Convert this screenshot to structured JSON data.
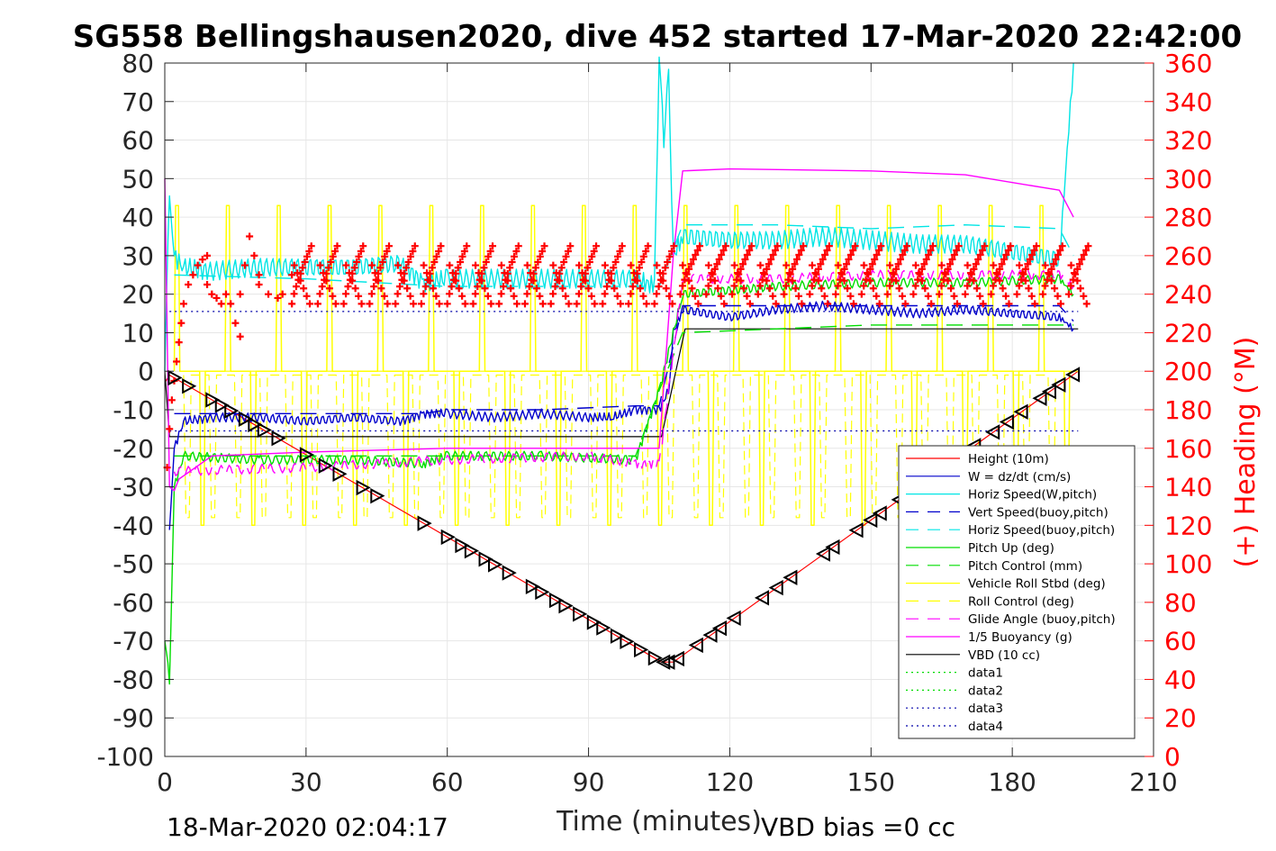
{
  "title": "SG558 Bellingshausen2020, dive 452 started 17-Mar-2020 22:42:00",
  "footer": {
    "end_time": "18-Mar-2020 02:04:17",
    "vbd_bias": "VBD bias =0 cc"
  },
  "chart_data": {
    "type": "line",
    "xlabel": "Time (minutes)",
    "ylabel": "",
    "y2label": "(+) Heading (°M)",
    "xlim": [
      0,
      210
    ],
    "ylim": [
      -100,
      80
    ],
    "y2lim": [
      0,
      360
    ],
    "xticks": [
      "0",
      "30",
      "60",
      "90",
      "120",
      "150",
      "180",
      "210"
    ],
    "yticks": [
      "80",
      "70",
      "60",
      "50",
      "40",
      "30",
      "20",
      "10",
      "0",
      "-10",
      "-20",
      "-30",
      "-40",
      "-50",
      "-60",
      "-70",
      "-80",
      "-90",
      "-100"
    ],
    "y2ticks": [
      "360",
      "340",
      "320",
      "300",
      "280",
      "260",
      "240",
      "220",
      "200",
      "180",
      "160",
      "140",
      "120",
      "100",
      "80",
      "60",
      "40",
      "20",
      "0"
    ],
    "grid": true,
    "legend_position": "bottom-right",
    "colors": {
      "height": "#ff0000",
      "w": "#0000cc",
      "horiz_w": "#00e5e5",
      "vert_buoy": "#0000cc",
      "horiz_buoy": "#00e5e5",
      "pitch": "#00dd00",
      "pitch_control": "#00dd00",
      "roll": "#ffff00",
      "roll_control": "#ffff00",
      "glide": "#ff00ff",
      "buoyancy": "#ff00ff",
      "vbd": "#000000",
      "heading": "#ff0000",
      "data": "#0000aa"
    },
    "legend": [
      {
        "key": "height",
        "label": "Height (10m)",
        "style": "solid"
      },
      {
        "key": "w",
        "label": "W = dz/dt (cm/s)",
        "style": "solid"
      },
      {
        "key": "horiz_w",
        "label": "Horiz Speed(W,pitch)",
        "style": "solid"
      },
      {
        "key": "vert_buoy",
        "label": "Vert Speed(buoy,pitch)",
        "style": "dashed"
      },
      {
        "key": "horiz_buoy",
        "label": "Horiz Speed(buoy,pitch)",
        "style": "dashed"
      },
      {
        "key": "pitch",
        "label": "Pitch Up (deg)",
        "style": "solid"
      },
      {
        "key": "pitch_control",
        "label": "Pitch Control (mm)",
        "style": "dashed"
      },
      {
        "key": "roll",
        "label": "Vehicle Roll Stbd (deg)",
        "style": "solid"
      },
      {
        "key": "roll_control",
        "label": "Roll Control (deg)",
        "style": "dashed"
      },
      {
        "key": "glide",
        "label": "Glide Angle (buoy,pitch)",
        "style": "dashed"
      },
      {
        "key": "buoyancy",
        "label": "1/5 Buoyancy (g)",
        "style": "solid"
      },
      {
        "key": "vbd",
        "label": "VBD (10 cc)",
        "style": "solid"
      },
      {
        "key": "data1",
        "label": "data1",
        "style": "dotted",
        "color": "#00dd00"
      },
      {
        "key": "data2",
        "label": "data2",
        "style": "dotted",
        "color": "#00dd00"
      },
      {
        "key": "data3",
        "label": "data3",
        "style": "dotted",
        "color": "#0000aa"
      },
      {
        "key": "data4",
        "label": "data4",
        "style": "dotted",
        "color": "#0000aa"
      }
    ],
    "series": [
      {
        "key": "height",
        "x": [
          0,
          1,
          105.5,
          108,
          194
        ],
        "y": [
          -3,
          -1,
          -75.5,
          -75.5,
          0
        ]
      },
      {
        "key": "vbd",
        "x": [
          0,
          1,
          1.5,
          105.5,
          110.5,
          194
        ],
        "y": [
          0,
          -17,
          -17,
          -17,
          11,
          11
        ]
      },
      {
        "key": "w",
        "x": [
          1,
          2,
          4,
          10,
          20,
          30,
          40,
          50,
          55,
          60,
          70,
          80,
          90,
          95,
          100,
          105,
          107,
          108,
          110,
          120,
          130,
          140,
          150,
          160,
          170,
          180,
          190,
          193
        ],
        "y": [
          -40,
          -20,
          -13,
          -12,
          -12,
          -13,
          -12,
          -13,
          -11,
          -11,
          -12,
          -11,
          -12,
          -12,
          -10,
          -10,
          -5,
          10,
          16,
          14,
          16,
          17,
          16,
          15,
          16,
          15,
          14,
          11
        ]
      },
      {
        "key": "vert_buoy",
        "x": [
          2,
          10,
          30,
          55,
          60,
          80,
          100,
          105,
          110,
          130,
          150,
          170,
          190,
          193
        ],
        "y": [
          -11,
          -11,
          -11,
          -11,
          -10,
          -10,
          -9,
          -9,
          17,
          17,
          17,
          17,
          17,
          13
        ]
      },
      {
        "key": "horiz_w",
        "x": [
          0,
          1,
          2,
          4,
          10,
          20,
          30,
          40,
          50,
          55,
          60,
          70,
          80,
          90,
          100,
          104,
          105,
          106,
          107,
          108,
          110,
          120,
          130,
          140,
          150,
          160,
          170,
          180,
          190,
          193
        ],
        "y": [
          0,
          48,
          30,
          27,
          26,
          27,
          27,
          27,
          28,
          23,
          24,
          24,
          24,
          24,
          24,
          22,
          80,
          60,
          80,
          30,
          35,
          34,
          34,
          35,
          34,
          33,
          33,
          31,
          29,
          80
        ]
      },
      {
        "key": "horiz_buoy",
        "x": [
          2,
          30,
          60,
          100,
          105,
          110,
          130,
          150,
          170,
          190,
          193
        ],
        "y": [
          25,
          24,
          22,
          22,
          22,
          38,
          38,
          37,
          38,
          37,
          30
        ]
      },
      {
        "key": "pitch",
        "x": [
          0,
          1,
          2,
          4,
          20,
          40,
          55,
          60,
          80,
          100,
          105,
          110,
          120,
          130,
          150,
          170,
          190,
          193
        ],
        "y": [
          -70,
          -80,
          -30,
          -22,
          -23,
          -23,
          -24,
          -22,
          -22,
          -23,
          -5,
          20,
          21,
          22,
          23,
          23,
          24,
          20
        ]
      },
      {
        "key": "pitch_control",
        "x": [
          2,
          30,
          60,
          100,
          105,
          110,
          130,
          150,
          170,
          190,
          193
        ],
        "y": [
          -22,
          -22,
          -22,
          -22,
          -5,
          10,
          11,
          12,
          12,
          12,
          12
        ]
      },
      {
        "key": "glide",
        "x": [
          2,
          30,
          60,
          90,
          100,
          105,
          110,
          130,
          150,
          170,
          190,
          193
        ],
        "y": [
          -26,
          -25,
          -23,
          -22,
          -24,
          -24,
          24,
          24,
          25,
          25,
          25,
          22
        ]
      },
      {
        "key": "buoyancy",
        "x": [
          0,
          1,
          2,
          3,
          10,
          30,
          60,
          90,
          105,
          108,
          110,
          120,
          150,
          170,
          190,
          193
        ],
        "y": [
          50,
          -30,
          -31,
          -28,
          -22,
          -21,
          -20,
          -20,
          -20,
          30,
          52,
          52.5,
          52,
          51,
          47,
          40
        ]
      },
      {
        "key": "roll_baseline",
        "x": [
          4,
          105,
          108,
          194
        ],
        "y": [
          0,
          0,
          0,
          0
        ]
      },
      {
        "key": "data3",
        "x": [
          1,
          194
        ],
        "y": [
          15.5,
          15.5
        ]
      },
      {
        "key": "data4",
        "x": [
          1,
          194
        ],
        "y": [
          -15.5,
          -15.5
        ]
      }
    ],
    "heading": {
      "axis": "right",
      "segments": [
        {
          "x": [
            0.5,
            1,
            1.5,
            2,
            2.5,
            3,
            3.5,
            4,
            5,
            6,
            7,
            8,
            9
          ],
          "y": [
            150,
            170,
            185,
            195,
            205,
            215,
            225,
            235,
            245,
            250,
            255,
            258,
            260
          ]
        },
        {
          "x": [
            9,
            10,
            11,
            12,
            13,
            14,
            15,
            16
          ],
          "y": [
            245,
            240,
            238,
            235,
            240,
            235,
            225,
            218
          ]
        },
        {
          "x": [
            16,
            17,
            18,
            19,
            20
          ],
          "y": [
            240,
            255,
            270,
            260,
            250
          ]
        },
        {
          "x": [
            20,
            22,
            24,
            25,
            27
          ],
          "y": [
            245,
            240,
            238,
            240,
            250
          ]
        }
      ],
      "period": 5.5,
      "low_dive": 235,
      "high_dive": 265,
      "climb_low": 240,
      "climb_high": 265,
      "dive_end": 105,
      "climb_start": 108,
      "end": 193
    },
    "markers": {
      "shape": "triangle",
      "color": "#000000",
      "x": [
        2,
        5,
        10,
        12,
        14,
        17,
        19,
        21,
        24,
        30,
        34,
        37,
        42,
        45,
        55,
        60,
        63,
        65,
        68,
        70,
        73,
        78,
        80,
        83,
        85,
        88,
        91,
        93,
        96,
        98,
        101,
        104,
        106,
        107,
        109,
        113,
        116,
        118,
        121,
        127,
        130,
        133,
        140,
        142,
        147,
        150,
        152,
        156,
        160,
        164,
        167,
        172,
        176,
        179,
        182,
        186,
        188,
        190,
        193
      ],
      "dive_x0": 1,
      "dive_y0": -1,
      "dive_x1": 105.5,
      "dive_y1": -75.5,
      "climb_x0": 108,
      "climb_y0": -75.5,
      "climb_x1": 194,
      "climb_y1": 0
    }
  }
}
